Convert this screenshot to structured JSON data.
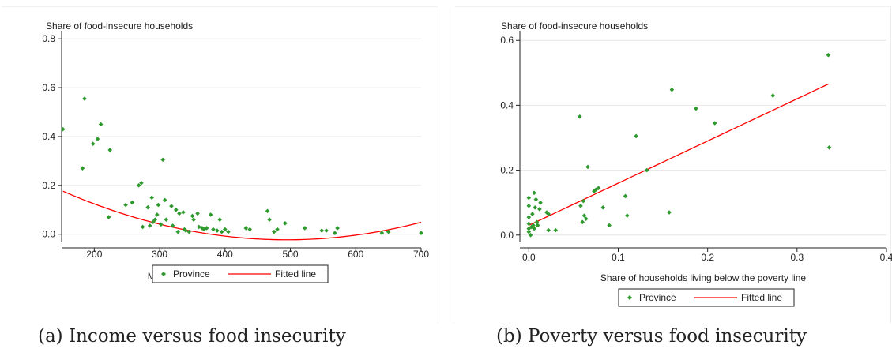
{
  "colors": {
    "points": "#2e9a2e",
    "fit": "#ff0000",
    "grid": "#e6e6e6",
    "axis": "#222222"
  },
  "panels": [
    {
      "caption": "(a) Income versus food insecurity"
    },
    {
      "caption": "(b) Poverty versus food insecurity"
    }
  ],
  "chart_data": [
    {
      "type": "scatter",
      "title": "Share of food-insecure households",
      "xlabel": "Monthly income per capita (in thousand)",
      "ylabel": "",
      "xlim": [
        150,
        700
      ],
      "ylim": [
        -0.03,
        0.82
      ],
      "xticks": [
        200,
        300,
        400,
        500,
        600,
        700
      ],
      "yticks": [
        0.0,
        0.2,
        0.4,
        0.6,
        0.8
      ],
      "ytick_labels": [
        "0.0",
        "0.2",
        "0.4",
        "0.6",
        "0.8"
      ],
      "grid": true,
      "legend": {
        "position": "bottom",
        "entries": [
          "Province",
          "Fitted line"
        ]
      },
      "series": [
        {
          "name": "Province",
          "type": "scatter",
          "points": [
            [
              152,
              0.43
            ],
            [
              182,
              0.27
            ],
            [
              185,
              0.555
            ],
            [
              198,
              0.37
            ],
            [
              205,
              0.39
            ],
            [
              210,
              0.45
            ],
            [
              224,
              0.345
            ],
            [
              222,
              0.07
            ],
            [
              248,
              0.12
            ],
            [
              258,
              0.13
            ],
            [
              268,
              0.2
            ],
            [
              272,
              0.21
            ],
            [
              274,
              0.03
            ],
            [
              282,
              0.11
            ],
            [
              285,
              0.035
            ],
            [
              288,
              0.15
            ],
            [
              290,
              0.05
            ],
            [
              293,
              0.06
            ],
            [
              296,
              0.08
            ],
            [
              298,
              0.12
            ],
            [
              302,
              0.04
            ],
            [
              305,
              0.305
            ],
            [
              308,
              0.14
            ],
            [
              310,
              0.06
            ],
            [
              318,
              0.115
            ],
            [
              320,
              0.035
            ],
            [
              325,
              0.1
            ],
            [
              328,
              0.01
            ],
            [
              330,
              0.085
            ],
            [
              336,
              0.09
            ],
            [
              338,
              0.02
            ],
            [
              340,
              0.015
            ],
            [
              345,
              0.01
            ],
            [
              350,
              0.075
            ],
            [
              352,
              0.06
            ],
            [
              358,
              0.085
            ],
            [
              360,
              0.03
            ],
            [
              365,
              0.025
            ],
            [
              368,
              0.02
            ],
            [
              372,
              0.025
            ],
            [
              378,
              0.08
            ],
            [
              382,
              0.02
            ],
            [
              388,
              0.015
            ],
            [
              392,
              0.06
            ],
            [
              395,
              0.01
            ],
            [
              400,
              0.02
            ],
            [
              405,
              0.01
            ],
            [
              432,
              0.025
            ],
            [
              438,
              0.02
            ],
            [
              465,
              0.095
            ],
            [
              468,
              0.06
            ],
            [
              475,
              0.01
            ],
            [
              480,
              0.02
            ],
            [
              492,
              0.045
            ],
            [
              522,
              0.025
            ],
            [
              548,
              0.015
            ],
            [
              555,
              0.015
            ],
            [
              568,
              0.005
            ],
            [
              572,
              0.025
            ],
            [
              640,
              0.005
            ],
            [
              650,
              0.01
            ],
            [
              700,
              0.005
            ]
          ]
        },
        {
          "name": "Fitted line",
          "type": "line",
          "fit": {
            "kind": "quadratic",
            "a": 1.7e-06,
            "b": -0.00168,
            "c": 0.39225,
            "x_from": 152,
            "x_to": 700
          }
        }
      ]
    },
    {
      "type": "scatter",
      "title": "Share of food-insecure households",
      "xlabel": "Share of households living below the poverty line",
      "ylabel": "",
      "xlim": [
        -0.01,
        0.4
      ],
      "ylim": [
        -0.02,
        0.62
      ],
      "xticks": [
        0.0,
        0.1,
        0.2,
        0.3,
        0.4
      ],
      "xtick_labels": [
        "0.0",
        "0.1",
        "0.2",
        "0.3",
        "0.4"
      ],
      "yticks": [
        0.0,
        0.2,
        0.4,
        0.6
      ],
      "ytick_labels": [
        "0.0",
        "0.2",
        "0.4",
        "0.6"
      ],
      "grid": true,
      "legend": {
        "position": "bottom",
        "entries": [
          "Province",
          "Fitted line"
        ]
      },
      "series": [
        {
          "name": "Province",
          "type": "scatter",
          "points": [
            [
              0.0,
              0.01
            ],
            [
              0.0,
              0.02
            ],
            [
              0.0,
              0.035
            ],
            [
              0.0,
              0.055
            ],
            [
              0.0,
              0.09
            ],
            [
              0.0,
              0.115
            ],
            [
              0.002,
              0.0
            ],
            [
              0.003,
              0.025
            ],
            [
              0.004,
              0.065
            ],
            [
              0.005,
              0.03
            ],
            [
              0.006,
              0.02
            ],
            [
              0.006,
              0.13
            ],
            [
              0.007,
              0.085
            ],
            [
              0.008,
              0.11
            ],
            [
              0.009,
              0.04
            ],
            [
              0.01,
              0.03
            ],
            [
              0.012,
              0.08
            ],
            [
              0.013,
              0.1
            ],
            [
              0.02,
              0.07
            ],
            [
              0.022,
              0.065
            ],
            [
              0.022,
              0.015
            ],
            [
              0.03,
              0.015
            ],
            [
              0.057,
              0.365
            ],
            [
              0.058,
              0.09
            ],
            [
              0.06,
              0.04
            ],
            [
              0.061,
              0.105
            ],
            [
              0.062,
              0.06
            ],
            [
              0.064,
              0.05
            ],
            [
              0.066,
              0.21
            ],
            [
              0.073,
              0.135
            ],
            [
              0.075,
              0.14
            ],
            [
              0.078,
              0.145
            ],
            [
              0.083,
              0.085
            ],
            [
              0.09,
              0.03
            ],
            [
              0.108,
              0.12
            ],
            [
              0.11,
              0.06
            ],
            [
              0.12,
              0.305
            ],
            [
              0.132,
              0.2
            ],
            [
              0.157,
              0.07
            ],
            [
              0.16,
              0.448
            ],
            [
              0.187,
              0.39
            ],
            [
              0.208,
              0.345
            ],
            [
              0.273,
              0.43
            ],
            [
              0.335,
              0.555
            ],
            [
              0.336,
              0.27
            ]
          ]
        },
        {
          "name": "Fitted line",
          "type": "line",
          "fit": {
            "kind": "linear",
            "slope": 1.3,
            "intercept": 0.03,
            "x_from": 0.0,
            "x_to": 0.335
          }
        }
      ]
    }
  ]
}
